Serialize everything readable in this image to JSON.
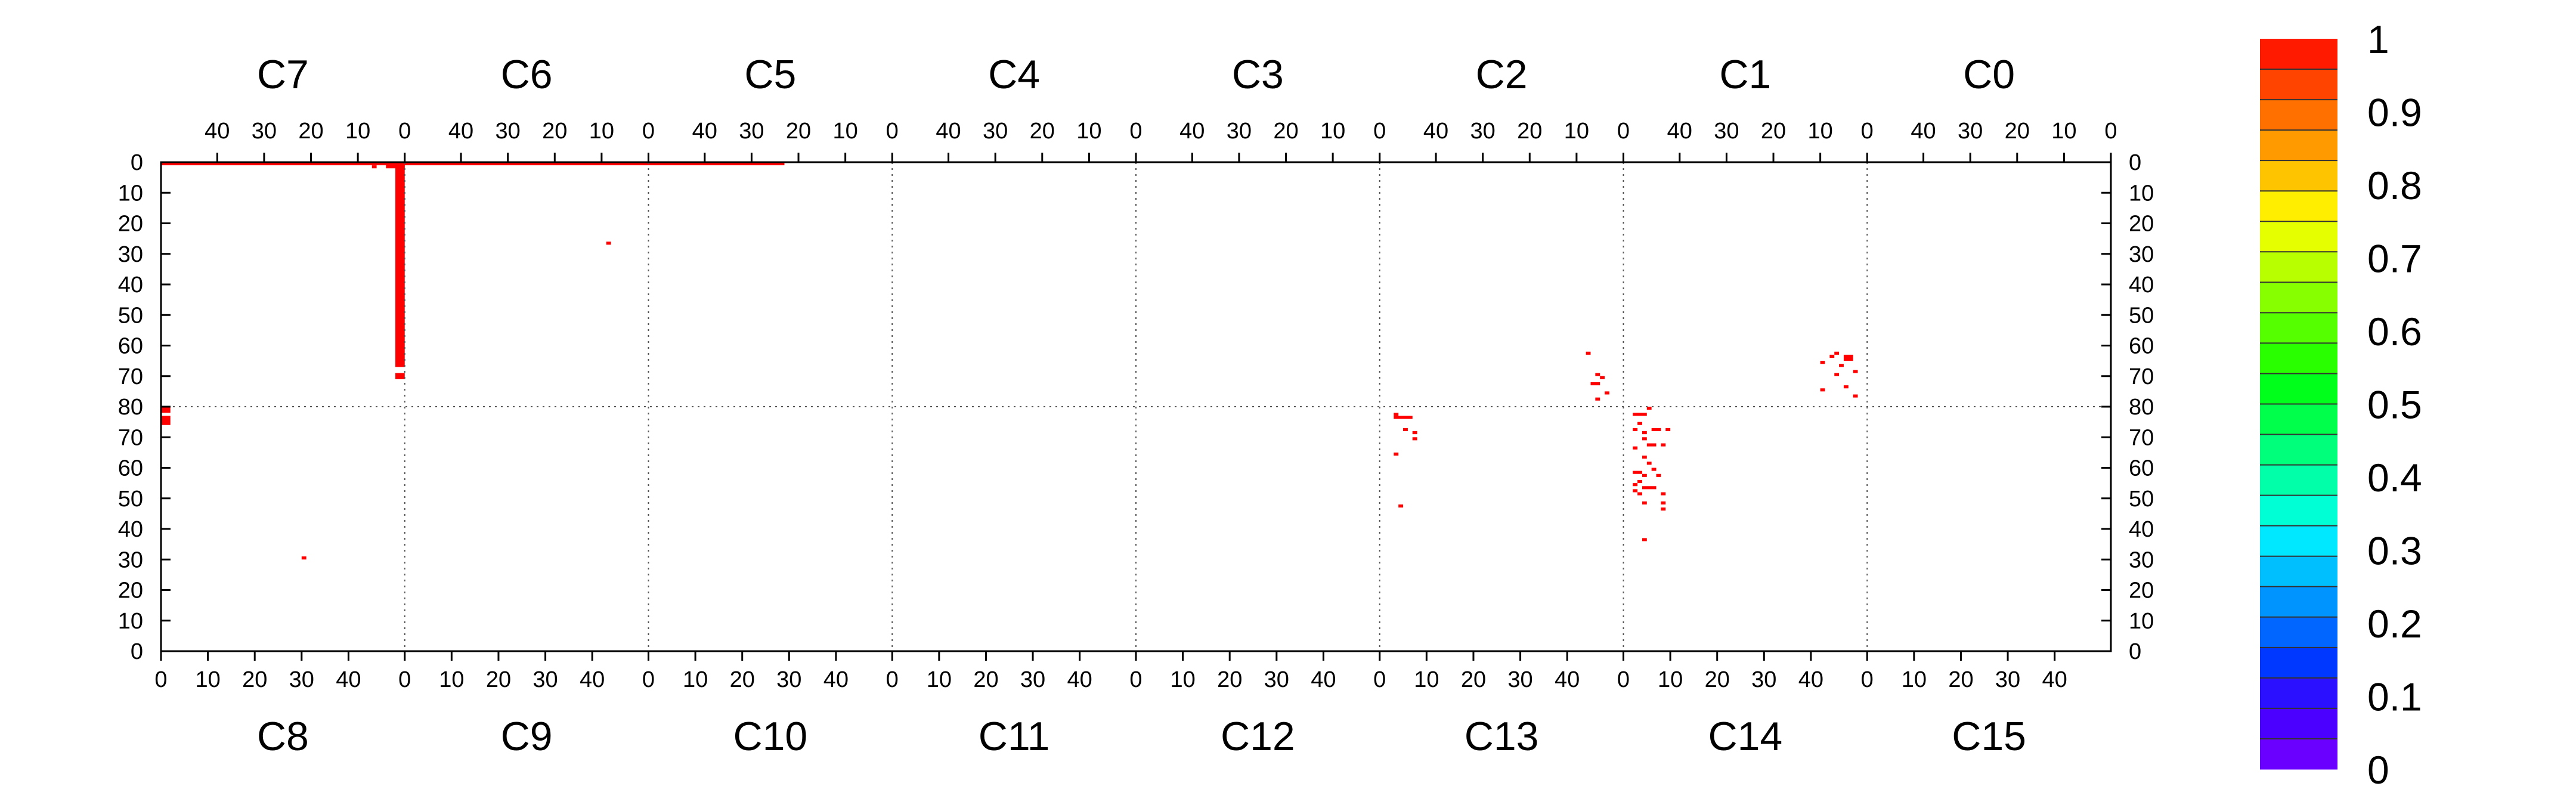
{
  "chart_data": {
    "type": "heatmap",
    "title": "",
    "xlabel": "",
    "ylabel": "",
    "grid": true,
    "legend": "right",
    "top_sections": [
      "C7",
      "C6",
      "C5",
      "C4",
      "C3",
      "C2",
      "C1",
      "C0"
    ],
    "bottom_sections": [
      "C8",
      "C9",
      "C10",
      "C11",
      "C12",
      "C13",
      "C14",
      "C15"
    ],
    "section_x_ticks": [
      0,
      10,
      20,
      30,
      40
    ],
    "section_x_range": [
      0,
      52
    ],
    "upper_half": {
      "y_ticks": [
        0,
        10,
        20,
        30,
        40,
        50,
        60,
        70,
        80
      ],
      "y_range": [
        0,
        80
      ],
      "direction": "top-down"
    },
    "lower_half": {
      "y_ticks": [
        0,
        10,
        20,
        30,
        40,
        50,
        60,
        70,
        80
      ],
      "y_range": [
        0,
        80
      ],
      "direction": "bottom-up"
    },
    "colorbar": {
      "range": [
        0,
        1
      ],
      "labels": [
        "1",
        "0.9",
        "0.8",
        "0.7",
        "0.6",
        "0.5",
        "0.4",
        "0.3",
        "0.2",
        "0.1",
        "0"
      ],
      "colors": [
        "#6a00ff",
        "#4b00ff",
        "#2a10ff",
        "#0038ff",
        "#0066ff",
        "#0094ff",
        "#00bfff",
        "#00e8ff",
        "#00ffd5",
        "#00ffa8",
        "#00ff7a",
        "#00ff4a",
        "#00ff1a",
        "#2aff00",
        "#55ff00",
        "#88ff00",
        "#b8ff00",
        "#e5ff00",
        "#ffee00",
        "#ffc400",
        "#ff9a00",
        "#ff7000",
        "#ff4400",
        "#ff1a00"
      ]
    },
    "cell_color": "#ff0000",
    "cells": [
      {
        "section": "C7",
        "x": 0,
        "y": 0,
        "w": 2,
        "h": 67,
        "value": 1
      },
      {
        "section": "C7",
        "x": 0,
        "y": 0,
        "w": 52,
        "h": 1,
        "value": 1
      },
      {
        "section": "C6",
        "x": 0,
        "y": 0,
        "w": 52,
        "h": 1,
        "value": 1
      },
      {
        "section": "C5",
        "x": 23,
        "y": 0,
        "w": 29,
        "h": 1,
        "value": 1
      },
      {
        "section": "C7",
        "x": 0,
        "y": 0,
        "w": 4,
        "h": 2,
        "value": 1
      },
      {
        "section": "C7",
        "x": 6,
        "y": 1,
        "w": 1,
        "h": 1,
        "value": 1
      },
      {
        "section": "C7",
        "x": 0,
        "y": 69,
        "w": 2,
        "h": 2,
        "value": 1
      },
      {
        "section": "C8",
        "x": 0,
        "y": 78,
        "w": 2,
        "h": 2,
        "value": 1
      },
      {
        "section": "C8",
        "x": 0,
        "y": 74,
        "w": 2,
        "h": 3,
        "value": 1
      },
      {
        "section": "C6",
        "x": 8,
        "y": 26,
        "w": 1,
        "h": 1,
        "value": 1
      },
      {
        "section": "C8",
        "x": 30,
        "y": 30,
        "w": 1,
        "h": 1,
        "value": 1
      },
      {
        "section": "C2",
        "x": 7,
        "y": 62,
        "w": 1,
        "h": 1,
        "value": 1
      },
      {
        "section": "C2",
        "x": 5,
        "y": 69,
        "w": 1,
        "h": 1,
        "value": 1
      },
      {
        "section": "C2",
        "x": 4,
        "y": 70,
        "w": 1,
        "h": 1,
        "value": 1
      },
      {
        "section": "C2",
        "x": 5,
        "y": 72,
        "w": 2,
        "h": 1,
        "value": 1
      },
      {
        "section": "C2",
        "x": 3,
        "y": 75,
        "w": 1,
        "h": 1,
        "value": 1
      },
      {
        "section": "C2",
        "x": 5,
        "y": 77,
        "w": 1,
        "h": 1,
        "value": 1
      },
      {
        "section": "C1",
        "x": 3,
        "y": 63,
        "w": 2,
        "h": 2,
        "value": 1
      },
      {
        "section": "C1",
        "x": 6,
        "y": 62,
        "w": 1,
        "h": 1,
        "value": 1
      },
      {
        "section": "C1",
        "x": 7,
        "y": 63,
        "w": 1,
        "h": 1,
        "value": 1
      },
      {
        "section": "C1",
        "x": 9,
        "y": 65,
        "w": 1,
        "h": 1,
        "value": 1
      },
      {
        "section": "C1",
        "x": 5,
        "y": 66,
        "w": 1,
        "h": 1,
        "value": 1
      },
      {
        "section": "C1",
        "x": 2,
        "y": 68,
        "w": 1,
        "h": 1,
        "value": 1
      },
      {
        "section": "C1",
        "x": 6,
        "y": 69,
        "w": 1,
        "h": 1,
        "value": 1
      },
      {
        "section": "C1",
        "x": 4,
        "y": 73,
        "w": 1,
        "h": 1,
        "value": 1
      },
      {
        "section": "C1",
        "x": 9,
        "y": 74,
        "w": 1,
        "h": 1,
        "value": 1
      },
      {
        "section": "C1",
        "x": 2,
        "y": 76,
        "w": 1,
        "h": 1,
        "value": 1
      },
      {
        "section": "C14",
        "x": 2,
        "y": 77,
        "w": 3,
        "h": 1,
        "value": 1
      },
      {
        "section": "C13",
        "x": 3,
        "y": 76,
        "w": 4,
        "h": 1,
        "value": 1
      },
      {
        "section": "C13",
        "x": 3,
        "y": 77,
        "w": 1,
        "h": 1,
        "value": 1
      },
      {
        "section": "C14",
        "x": 5,
        "y": 79,
        "w": 1,
        "h": 1,
        "value": 1
      },
      {
        "section": "C14",
        "x": 3,
        "y": 74,
        "w": 1,
        "h": 1,
        "value": 1
      },
      {
        "section": "C13",
        "x": 5,
        "y": 72,
        "w": 1,
        "h": 1,
        "value": 1
      },
      {
        "section": "C13",
        "x": 7,
        "y": 71,
        "w": 1,
        "h": 1,
        "value": 1
      },
      {
        "section": "C13",
        "x": 7,
        "y": 69,
        "w": 1,
        "h": 1,
        "value": 1
      },
      {
        "section": "C14",
        "x": 2,
        "y": 72,
        "w": 1,
        "h": 1,
        "value": 1
      },
      {
        "section": "C14",
        "x": 4,
        "y": 71,
        "w": 1,
        "h": 1,
        "value": 1
      },
      {
        "section": "C14",
        "x": 6,
        "y": 72,
        "w": 2,
        "h": 1,
        "value": 1
      },
      {
        "section": "C14",
        "x": 9,
        "y": 72,
        "w": 1,
        "h": 1,
        "value": 1
      },
      {
        "section": "C14",
        "x": 4,
        "y": 69,
        "w": 1,
        "h": 1,
        "value": 1
      },
      {
        "section": "C14",
        "x": 5,
        "y": 67,
        "w": 2,
        "h": 1,
        "value": 1
      },
      {
        "section": "C14",
        "x": 2,
        "y": 66,
        "w": 1,
        "h": 1,
        "value": 1
      },
      {
        "section": "C14",
        "x": 8,
        "y": 67,
        "w": 1,
        "h": 1,
        "value": 1
      },
      {
        "section": "C13",
        "x": 3,
        "y": 64,
        "w": 1,
        "h": 1,
        "value": 1
      },
      {
        "section": "C14",
        "x": 4,
        "y": 63,
        "w": 1,
        "h": 1,
        "value": 1
      },
      {
        "section": "C14",
        "x": 5,
        "y": 61,
        "w": 1,
        "h": 1,
        "value": 1
      },
      {
        "section": "C14",
        "x": 6,
        "y": 59,
        "w": 1,
        "h": 1,
        "value": 1
      },
      {
        "section": "C14",
        "x": 2,
        "y": 58,
        "w": 2,
        "h": 1,
        "value": 1
      },
      {
        "section": "C14",
        "x": 4,
        "y": 57,
        "w": 1,
        "h": 1,
        "value": 1
      },
      {
        "section": "C14",
        "x": 7,
        "y": 57,
        "w": 1,
        "h": 1,
        "value": 1
      },
      {
        "section": "C14",
        "x": 3,
        "y": 55,
        "w": 1,
        "h": 1,
        "value": 1
      },
      {
        "section": "C14",
        "x": 2,
        "y": 54,
        "w": 1,
        "h": 1,
        "value": 1
      },
      {
        "section": "C14",
        "x": 4,
        "y": 53,
        "w": 3,
        "h": 1,
        "value": 1
      },
      {
        "section": "C14",
        "x": 2,
        "y": 52,
        "w": 1,
        "h": 1,
        "value": 1
      },
      {
        "section": "C14",
        "x": 3,
        "y": 51,
        "w": 1,
        "h": 1,
        "value": 1
      },
      {
        "section": "C14",
        "x": 8,
        "y": 51,
        "w": 1,
        "h": 1,
        "value": 1
      },
      {
        "section": "C14",
        "x": 4,
        "y": 48,
        "w": 1,
        "h": 1,
        "value": 1
      },
      {
        "section": "C14",
        "x": 8,
        "y": 48,
        "w": 1,
        "h": 1,
        "value": 1
      },
      {
        "section": "C14",
        "x": 8,
        "y": 46,
        "w": 1,
        "h": 1,
        "value": 1
      },
      {
        "section": "C13",
        "x": 4,
        "y": 47,
        "w": 1,
        "h": 1,
        "value": 1
      },
      {
        "section": "C14",
        "x": 4,
        "y": 36,
        "w": 1,
        "h": 1,
        "value": 1
      }
    ]
  }
}
